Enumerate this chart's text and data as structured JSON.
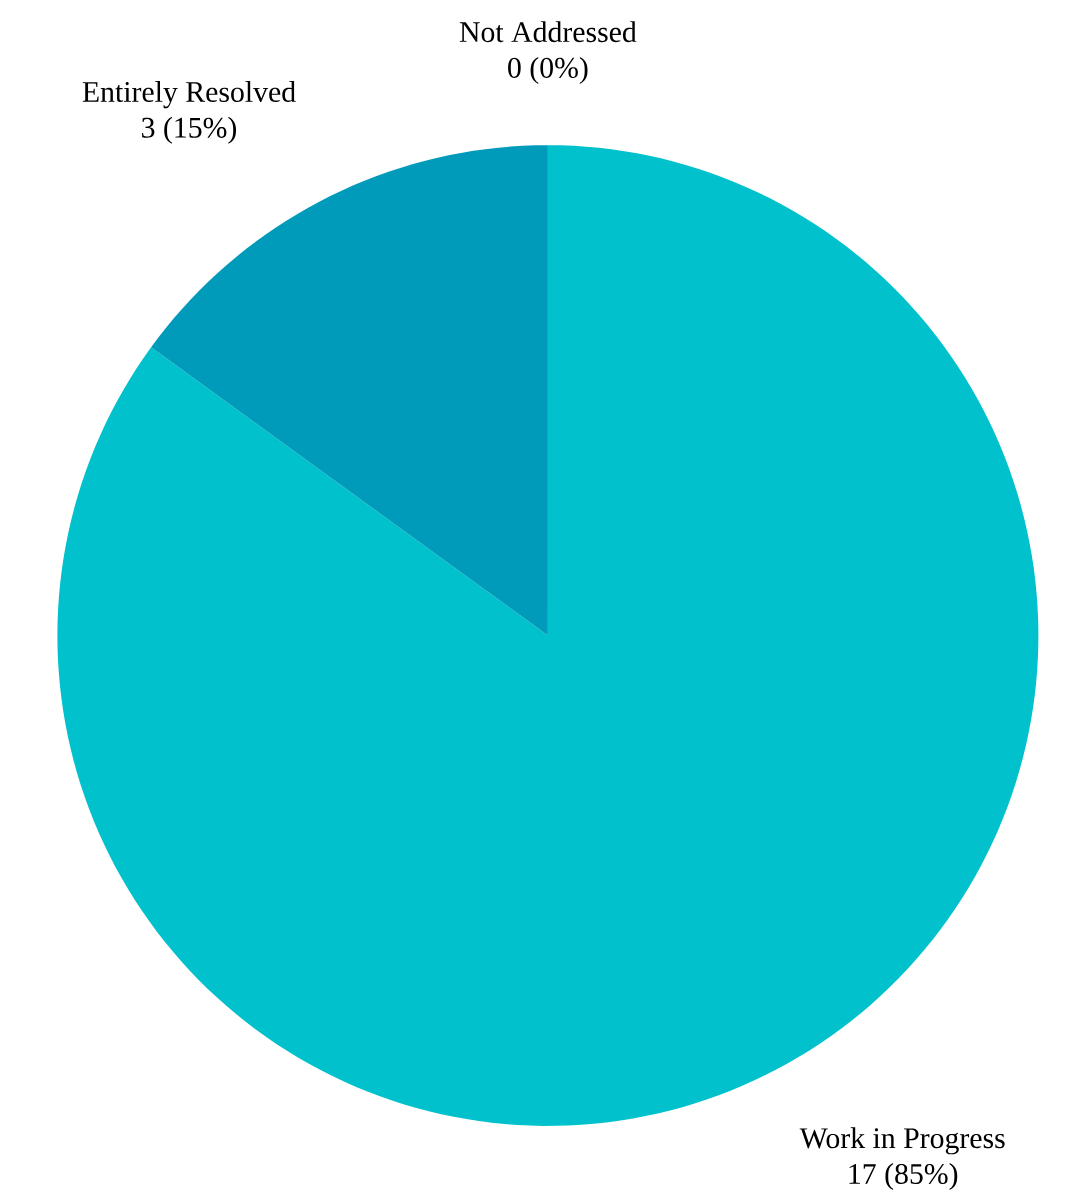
{
  "chart_data": {
    "type": "pie",
    "categories": [
      "Work in Progress",
      "Entirely Resolved",
      "Not Addressed"
    ],
    "values": [
      17,
      3,
      0
    ],
    "value_labels": [
      "17 (85%)",
      "3 (15%)",
      "0 (0%)"
    ],
    "colors": [
      "#00c1cc",
      "#009bba",
      "#4a7fc0"
    ]
  }
}
